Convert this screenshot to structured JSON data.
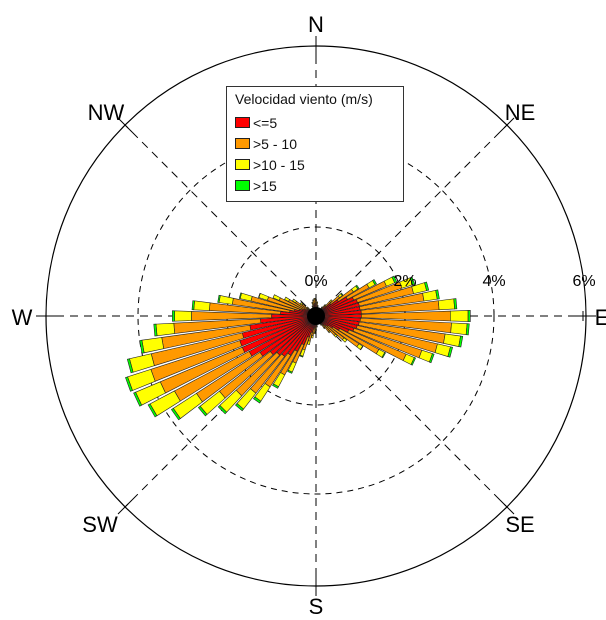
{
  "chart_data": {
    "type": "wind-rose",
    "title": "",
    "legend": {
      "title": "Velocidad viento (m/s)",
      "placement": "top-center",
      "entries": [
        {
          "label": "<=5",
          "color": "#ff0000"
        },
        {
          "label": ">5 - 10",
          "color": "#ff9900"
        },
        {
          "label": ">10 - 15",
          "color": "#ffff00"
        },
        {
          "label": ">15",
          "color": "#00ff00"
        }
      ]
    },
    "directions": [
      "N",
      "NE",
      "E",
      "SE",
      "S",
      "SW",
      "W",
      "NW"
    ],
    "radial_ticks": [
      "0%",
      "2%",
      "4%",
      "6%"
    ],
    "radial_max": 6,
    "sector_count": 72,
    "series": [
      {
        "name": "<=5",
        "color": "#ff0000",
        "values": [
          0.25,
          0.2,
          0.15,
          0.1,
          0.1,
          0.1,
          0.12,
          0.15,
          0.2,
          0.3,
          0.42,
          0.6,
          0.8,
          0.92,
          0.98,
          1.0,
          1.0,
          1.02,
          1.02,
          1.0,
          0.98,
          0.95,
          0.9,
          0.8,
          0.6,
          0.45,
          0.35,
          0.3,
          0.25,
          0.2,
          0.15,
          0.1,
          0.1,
          0.1,
          0.12,
          0.15,
          0.2,
          0.25,
          0.3,
          0.38,
          0.5,
          0.7,
          0.9,
          1.05,
          1.15,
          1.2,
          1.3,
          1.5,
          1.7,
          1.8,
          1.8,
          1.7,
          1.5,
          1.25,
          1.0,
          0.8,
          0.6,
          0.5,
          0.4,
          0.35,
          0.3,
          0.25,
          0.2,
          0.15,
          0.1,
          0.1,
          0.1,
          0.12,
          0.15,
          0.2,
          0.25,
          0.28
        ]
      },
      {
        "name": ">5 - 10",
        "color": "#ff9900",
        "values": [
          0.1,
          0.1,
          0.08,
          0.05,
          0.05,
          0.05,
          0.05,
          0.08,
          0.1,
          0.15,
          0.25,
          0.4,
          0.55,
          0.8,
          1.05,
          1.25,
          1.45,
          1.75,
          2.0,
          2.05,
          1.95,
          1.85,
          1.6,
          1.4,
          1.0,
          0.7,
          0.45,
          0.3,
          0.2,
          0.12,
          0.08,
          0.05,
          0.05,
          0.05,
          0.05,
          0.08,
          0.1,
          0.12,
          0.15,
          0.2,
          0.3,
          0.45,
          0.6,
          0.85,
          1.05,
          1.25,
          1.45,
          1.7,
          1.9,
          2.0,
          2.1,
          2.1,
          2.0,
          1.95,
          1.8,
          1.6,
          1.3,
          1.0,
          0.75,
          0.55,
          0.4,
          0.3,
          0.2,
          0.1,
          0.05,
          0.05,
          0.05,
          0.05,
          0.08,
          0.1,
          0.1,
          0.1
        ]
      },
      {
        "name": ">10 - 15",
        "color": "#ffff00",
        "values": [
          0.02,
          0.02,
          0.01,
          0.01,
          0.01,
          0.01,
          0.01,
          0.02,
          0.03,
          0.05,
          0.08,
          0.12,
          0.15,
          0.2,
          0.25,
          0.3,
          0.3,
          0.35,
          0.4,
          0.35,
          0.35,
          0.3,
          0.25,
          0.2,
          0.15,
          0.1,
          0.08,
          0.05,
          0.03,
          0.02,
          0.01,
          0.01,
          0.01,
          0.01,
          0.01,
          0.02,
          0.03,
          0.03,
          0.05,
          0.08,
          0.15,
          0.22,
          0.3,
          0.38,
          0.45,
          0.5,
          0.55,
          0.62,
          0.62,
          0.6,
          0.55,
          0.5,
          0.45,
          0.4,
          0.38,
          0.35,
          0.3,
          0.25,
          0.2,
          0.15,
          0.1,
          0.08,
          0.05,
          0.03,
          0.02,
          0.01,
          0.01,
          0.01,
          0.01,
          0.02,
          0.02,
          0.02
        ]
      },
      {
        "name": ">15",
        "color": "#00ff00",
        "values": [
          0,
          0,
          0,
          0,
          0,
          0,
          0,
          0,
          0,
          0,
          0.02,
          0.03,
          0.04,
          0.05,
          0.05,
          0.05,
          0.05,
          0.05,
          0.05,
          0.05,
          0.05,
          0.05,
          0.04,
          0.03,
          0.02,
          0.01,
          0,
          0,
          0,
          0,
          0,
          0,
          0,
          0,
          0,
          0,
          0,
          0,
          0,
          0,
          0.02,
          0.03,
          0.04,
          0.05,
          0.05,
          0.05,
          0.05,
          0.05,
          0.05,
          0.05,
          0.05,
          0.05,
          0.05,
          0.05,
          0.05,
          0.04,
          0.03,
          0.02,
          0.01,
          0,
          0,
          0,
          0,
          0,
          0,
          0,
          0,
          0,
          0,
          0,
          0,
          0
        ]
      }
    ],
    "grid": true
  }
}
